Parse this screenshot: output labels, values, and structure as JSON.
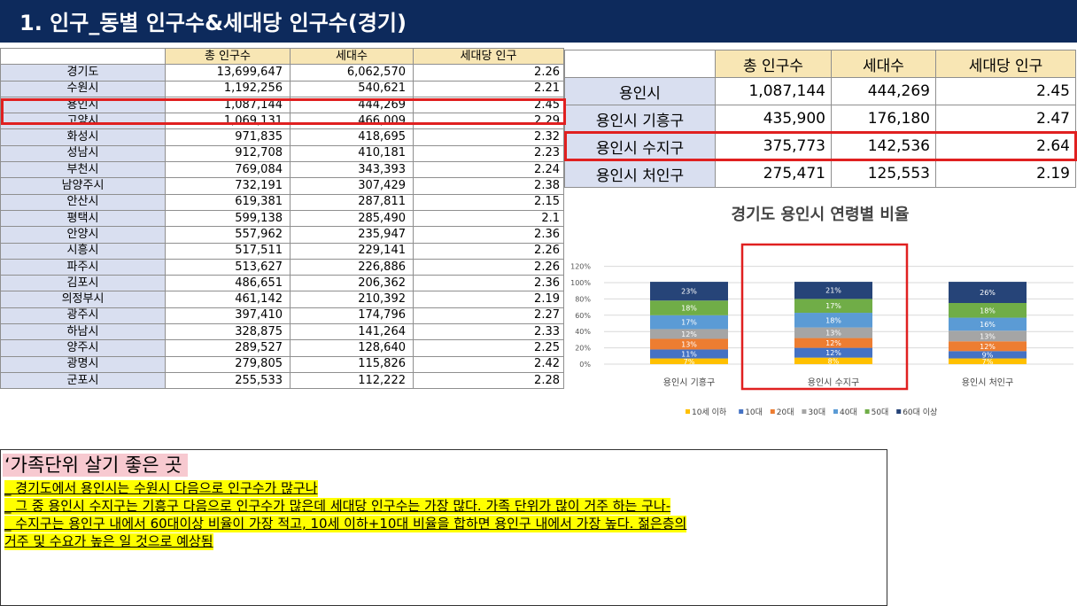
{
  "title": "1. 인구_동별 인구수&세대당 인구수(경기)",
  "left_table": {
    "headers": [
      "",
      "총 인구수",
      "세대수",
      "세대당 인구"
    ],
    "rows": [
      [
        "경기도",
        "13,699,647",
        "6,062,570",
        "2.26"
      ],
      [
        "수원시",
        "1,192,256",
        "540,621",
        "2.21"
      ],
      [
        "용인시",
        "1,087,144",
        "444,269",
        "2.45"
      ],
      [
        "고양시",
        "1,069,131",
        "466,009",
        "2.29"
      ],
      [
        "화성시",
        "971,835",
        "418,695",
        "2.32"
      ],
      [
        "성남시",
        "912,708",
        "410,181",
        "2.23"
      ],
      [
        "부천시",
        "769,084",
        "343,393",
        "2.24"
      ],
      [
        "남양주시",
        "732,191",
        "307,429",
        "2.38"
      ],
      [
        "안산시",
        "619,381",
        "287,811",
        "2.15"
      ],
      [
        "평택시",
        "599,138",
        "285,490",
        "2.1"
      ],
      [
        "안양시",
        "557,962",
        "235,947",
        "2.36"
      ],
      [
        "시흥시",
        "517,511",
        "229,141",
        "2.26"
      ],
      [
        "파주시",
        "513,627",
        "226,886",
        "2.26"
      ],
      [
        "김포시",
        "486,651",
        "206,362",
        "2.36"
      ],
      [
        "의정부시",
        "461,142",
        "210,392",
        "2.19"
      ],
      [
        "광주시",
        "397,410",
        "174,796",
        "2.27"
      ],
      [
        "하남시",
        "328,875",
        "141,264",
        "2.33"
      ],
      [
        "양주시",
        "289,527",
        "128,640",
        "2.25"
      ],
      [
        "광명시",
        "279,805",
        "115,826",
        "2.42"
      ],
      [
        "군포시",
        "255,533",
        "112,222",
        "2.28"
      ]
    ]
  },
  "right_table": {
    "headers": [
      "",
      "총 인구수",
      "세대수",
      "세대당 인구"
    ],
    "rows": [
      [
        "용인시",
        "1,087,144",
        "444,269",
        "2.45"
      ],
      [
        "용인시 기흥구",
        "435,900",
        "176,180",
        "2.47"
      ],
      [
        "용인시 수지구",
        "375,773",
        "142,536",
        "2.64"
      ],
      [
        "용인시 처인구",
        "275,471",
        "125,553",
        "2.19"
      ]
    ]
  },
  "chart_data": {
    "type": "bar",
    "stacked": true,
    "title": "경기도 용인시 연령별 비율",
    "categories": [
      "용인시 기흥구",
      "용인시 수지구",
      "용인시 처인구"
    ],
    "yticks": [
      "0%",
      "20%",
      "40%",
      "60%",
      "80%",
      "100%",
      "120%"
    ],
    "ylim": [
      0,
      120
    ],
    "series": [
      {
        "name": "10세 이하",
        "color": "#ffc000",
        "values": [
          7,
          8,
          7
        ],
        "labels": [
          "7%",
          "8%",
          "7%"
        ]
      },
      {
        "name": "10대",
        "color": "#4472c4",
        "values": [
          11,
          12,
          9
        ],
        "labels": [
          "11%",
          "12%",
          "9%"
        ]
      },
      {
        "name": "20대",
        "color": "#ed7d31",
        "values": [
          13,
          12,
          12
        ],
        "labels": [
          "13%",
          "12%",
          "12%"
        ]
      },
      {
        "name": "30대",
        "color": "#a5a5a5",
        "values": [
          12,
          13,
          13
        ],
        "labels": [
          "12%",
          "13%",
          "13%"
        ]
      },
      {
        "name": "40대",
        "color": "#5b9bd5",
        "values": [
          17,
          18,
          16
        ],
        "labels": [
          "17%",
          "18%",
          "16%"
        ]
      },
      {
        "name": "50대",
        "color": "#70ad47",
        "values": [
          18,
          17,
          18
        ],
        "labels": [
          "18%",
          "17%",
          "18%"
        ]
      },
      {
        "name": "60대 이상",
        "color": "#264478",
        "values": [
          23,
          21,
          26
        ],
        "labels": [
          "23%",
          "21%",
          "26%"
        ]
      }
    ],
    "legend_position": "bottom"
  },
  "note": {
    "heading": "‘가족단위 살기 좋은 곳",
    "lines": [
      "_ 경기도에서 용인시는 수원시 다음으로 인구수가 많구나",
      "_ 그 중 용인시 수지구는 기흥구 다음으로 인구수가 많은데 세대당 인구수는 가장 많다. 가족 단위가 많이 거주 하는 구나-",
      "_ 수지구는 용인구 내에서 60대이상 비율이 가장 적고, 10세 이하+10대 비율을 합하면 용인구 내에서 가장 높다. 젊은층의",
      "거주 및 수요가 높은 일 것으로 예상됨"
    ]
  },
  "colors": {
    "title_bg": "#0d2a5c",
    "header_bg": "#f8e6b4",
    "rowname_bg": "#d9dff0",
    "highlight": "#e02020"
  }
}
